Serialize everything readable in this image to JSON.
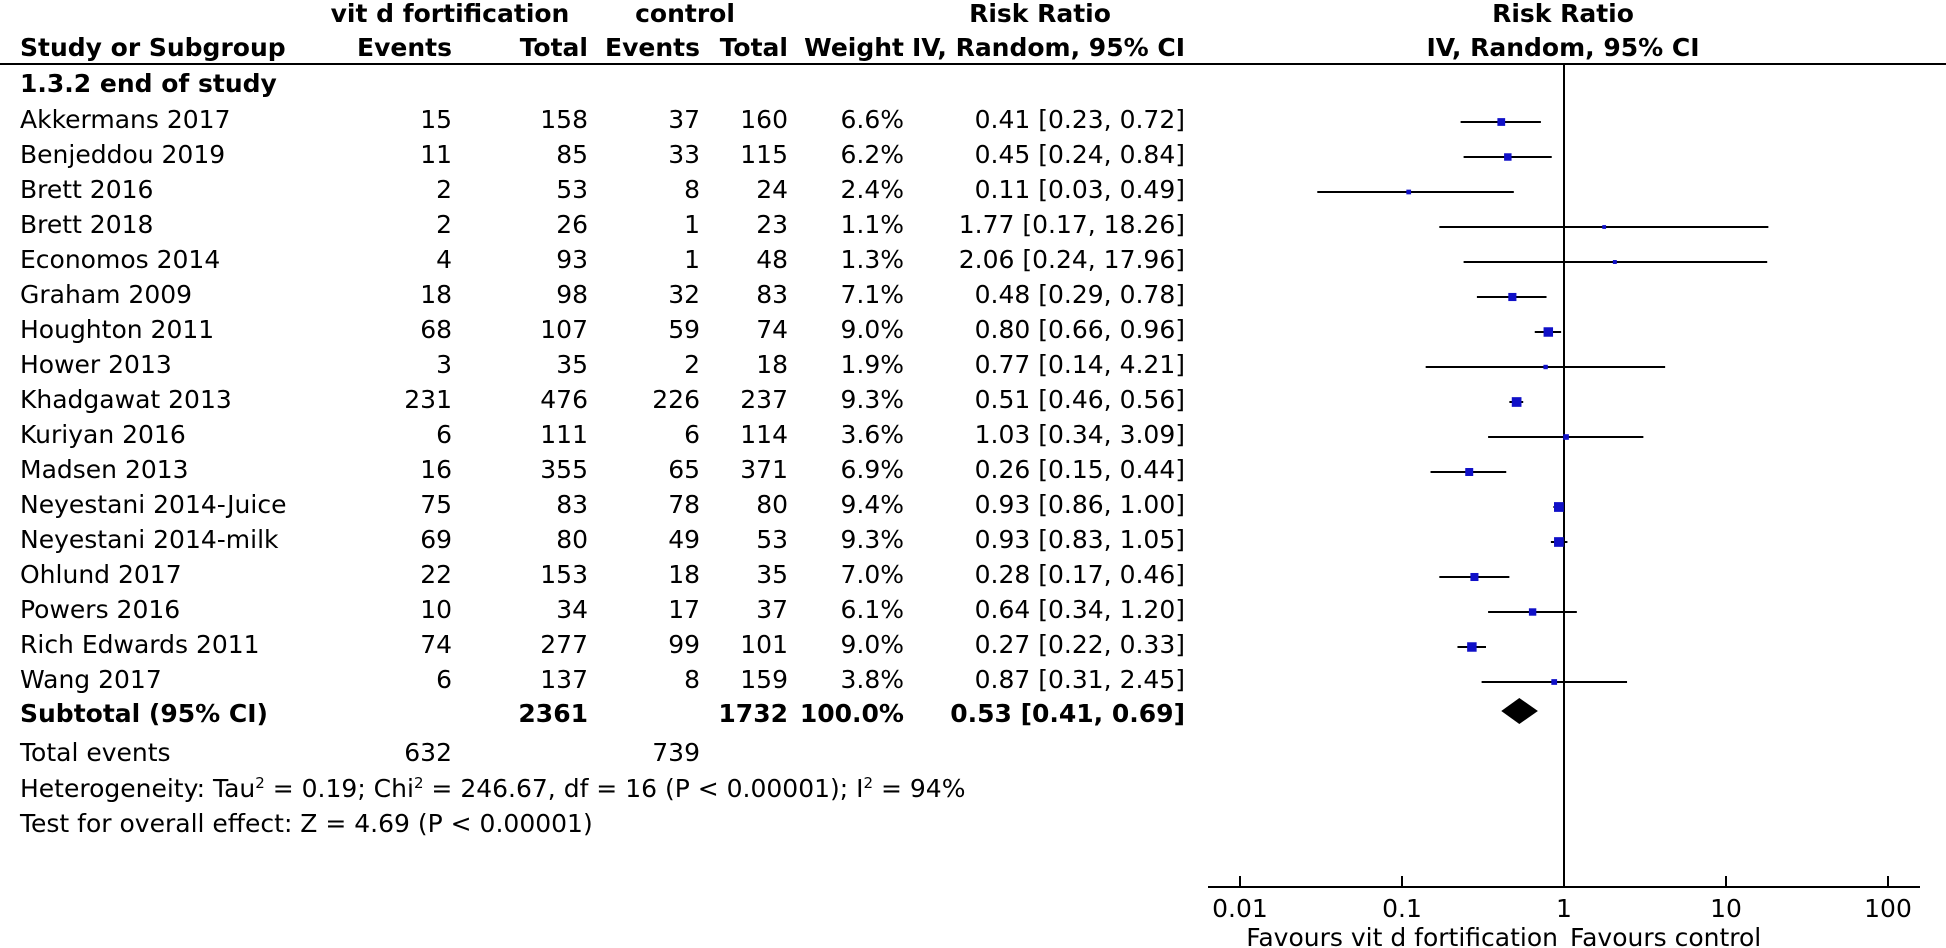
{
  "header": {
    "group1_name": "vit d fortification",
    "group2_name": "control",
    "rr_col_title": "Risk Ratio",
    "rr_col_method": "IV, Random, 95% CI",
    "plot_title": "Risk Ratio",
    "plot_method": "IV, Random, 95% CI",
    "col_study": "Study or Subgroup",
    "col_events1": "Events",
    "col_total1": "Total",
    "col_events2": "Events",
    "col_total2": "Total",
    "col_weight": "Weight"
  },
  "subgroup_label": "1.3.2 end of study",
  "studies": [
    {
      "name": "Akkermans 2017",
      "e1": "15",
      "n1": "158",
      "e2": "37",
      "n2": "160",
      "weight": "6.6%",
      "ci": "0.41 [0.23, 0.72]"
    },
    {
      "name": "Benjeddou 2019",
      "e1": "11",
      "n1": "85",
      "e2": "33",
      "n2": "115",
      "weight": "6.2%",
      "ci": "0.45 [0.24, 0.84]"
    },
    {
      "name": "Brett 2016",
      "e1": "2",
      "n1": "53",
      "e2": "8",
      "n2": "24",
      "weight": "2.4%",
      "ci": "0.11 [0.03, 0.49]"
    },
    {
      "name": "Brett 2018",
      "e1": "2",
      "n1": "26",
      "e2": "1",
      "n2": "23",
      "weight": "1.1%",
      "ci": "1.77 [0.17, 18.26]"
    },
    {
      "name": "Economos 2014",
      "e1": "4",
      "n1": "93",
      "e2": "1",
      "n2": "48",
      "weight": "1.3%",
      "ci": "2.06 [0.24, 17.96]"
    },
    {
      "name": "Graham 2009",
      "e1": "18",
      "n1": "98",
      "e2": "32",
      "n2": "83",
      "weight": "7.1%",
      "ci": "0.48 [0.29, 0.78]"
    },
    {
      "name": "Houghton 2011",
      "e1": "68",
      "n1": "107",
      "e2": "59",
      "n2": "74",
      "weight": "9.0%",
      "ci": "0.80 [0.66, 0.96]"
    },
    {
      "name": "Hower 2013",
      "e1": "3",
      "n1": "35",
      "e2": "2",
      "n2": "18",
      "weight": "1.9%",
      "ci": "0.77 [0.14, 4.21]"
    },
    {
      "name": "Khadgawat 2013",
      "e1": "231",
      "n1": "476",
      "e2": "226",
      "n2": "237",
      "weight": "9.3%",
      "ci": "0.51 [0.46, 0.56]"
    },
    {
      "name": "Kuriyan 2016",
      "e1": "6",
      "n1": "111",
      "e2": "6",
      "n2": "114",
      "weight": "3.6%",
      "ci": "1.03 [0.34, 3.09]"
    },
    {
      "name": "Madsen 2013",
      "e1": "16",
      "n1": "355",
      "e2": "65",
      "n2": "371",
      "weight": "6.9%",
      "ci": "0.26 [0.15, 0.44]"
    },
    {
      "name": "Neyestani 2014-Juice",
      "e1": "75",
      "n1": "83",
      "e2": "78",
      "n2": "80",
      "weight": "9.4%",
      "ci": "0.93 [0.86, 1.00]"
    },
    {
      "name": "Neyestani 2014-milk",
      "e1": "69",
      "n1": "80",
      "e2": "49",
      "n2": "53",
      "weight": "9.3%",
      "ci": "0.93 [0.83, 1.05]"
    },
    {
      "name": "Ohlund 2017",
      "e1": "22",
      "n1": "153",
      "e2": "18",
      "n2": "35",
      "weight": "7.0%",
      "ci": "0.28 [0.17, 0.46]"
    },
    {
      "name": "Powers 2016",
      "e1": "10",
      "n1": "34",
      "e2": "17",
      "n2": "37",
      "weight": "6.1%",
      "ci": "0.64 [0.34, 1.20]"
    },
    {
      "name": "Rich Edwards 2011",
      "e1": "74",
      "n1": "277",
      "e2": "99",
      "n2": "101",
      "weight": "9.0%",
      "ci": "0.27 [0.22, 0.33]"
    },
    {
      "name": "Wang 2017",
      "e1": "6",
      "n1": "137",
      "e2": "8",
      "n2": "159",
      "weight": "3.8%",
      "ci": "0.87 [0.31, 2.45]"
    }
  ],
  "subtotal": {
    "label": "Subtotal (95% CI)",
    "n1": "2361",
    "n2": "1732",
    "weight": "100.0%",
    "ci": "0.53 [0.41, 0.69]"
  },
  "total_events": {
    "label": "Total events",
    "e1": "632",
    "e2": "739"
  },
  "heterogeneity": {
    "prefix": "Heterogeneity: Tau",
    "sup1": "2",
    "mid": " = 0.19; Chi",
    "sup2": "2",
    "mid2": " = 246.67, df = 16 (P < 0.00001); I",
    "sup3": "2",
    "end": " = 94%"
  },
  "overall_effect": "Test for overall effect: Z = 4.69 (P < 0.00001)",
  "colors": {
    "marker": "#1010c8",
    "line": "#000000",
    "diamond": "#000000"
  },
  "chart_data": {
    "type": "forest",
    "title": "Risk Ratio",
    "subtitle": "IV, Random, 95% CI",
    "xscale": "log",
    "xlim": [
      0.01,
      100
    ],
    "xticks": [
      "0.01",
      "0.1",
      "1",
      "10",
      "100"
    ],
    "tick_values": [
      0.01,
      0.1,
      1,
      10,
      100
    ],
    "null_value": 1,
    "left_label": "Favours vit d fortification",
    "right_label": "Favours control",
    "points": [
      {
        "study": "Akkermans 2017",
        "rr": 0.41,
        "lo": 0.23,
        "hi": 0.72,
        "weight": 6.6
      },
      {
        "study": "Benjeddou 2019",
        "rr": 0.45,
        "lo": 0.24,
        "hi": 0.84,
        "weight": 6.2
      },
      {
        "study": "Brett 2016",
        "rr": 0.11,
        "lo": 0.03,
        "hi": 0.49,
        "weight": 2.4
      },
      {
        "study": "Brett 2018",
        "rr": 1.77,
        "lo": 0.17,
        "hi": 18.26,
        "weight": 1.1
      },
      {
        "study": "Economos 2014",
        "rr": 2.06,
        "lo": 0.24,
        "hi": 17.96,
        "weight": 1.3
      },
      {
        "study": "Graham 2009",
        "rr": 0.48,
        "lo": 0.29,
        "hi": 0.78,
        "weight": 7.1
      },
      {
        "study": "Houghton 2011",
        "rr": 0.8,
        "lo": 0.66,
        "hi": 0.96,
        "weight": 9.0
      },
      {
        "study": "Hower 2013",
        "rr": 0.77,
        "lo": 0.14,
        "hi": 4.21,
        "weight": 1.9
      },
      {
        "study": "Khadgawat 2013",
        "rr": 0.51,
        "lo": 0.46,
        "hi": 0.56,
        "weight": 9.3
      },
      {
        "study": "Kuriyan 2016",
        "rr": 1.03,
        "lo": 0.34,
        "hi": 3.09,
        "weight": 3.6
      },
      {
        "study": "Madsen 2013",
        "rr": 0.26,
        "lo": 0.15,
        "hi": 0.44,
        "weight": 6.9
      },
      {
        "study": "Neyestani 2014-Juice",
        "rr": 0.93,
        "lo": 0.86,
        "hi": 1.0,
        "weight": 9.4
      },
      {
        "study": "Neyestani 2014-milk",
        "rr": 0.93,
        "lo": 0.83,
        "hi": 1.05,
        "weight": 9.3
      },
      {
        "study": "Ohlund 2017",
        "rr": 0.28,
        "lo": 0.17,
        "hi": 0.46,
        "weight": 7.0
      },
      {
        "study": "Powers 2016",
        "rr": 0.64,
        "lo": 0.34,
        "hi": 1.2,
        "weight": 6.1
      },
      {
        "study": "Rich Edwards 2011",
        "rr": 0.27,
        "lo": 0.22,
        "hi": 0.33,
        "weight": 9.0
      },
      {
        "study": "Wang 2017",
        "rr": 0.87,
        "lo": 0.31,
        "hi": 2.45,
        "weight": 3.8
      }
    ],
    "pooled": {
      "rr": 0.53,
      "lo": 0.41,
      "hi": 0.69
    }
  }
}
